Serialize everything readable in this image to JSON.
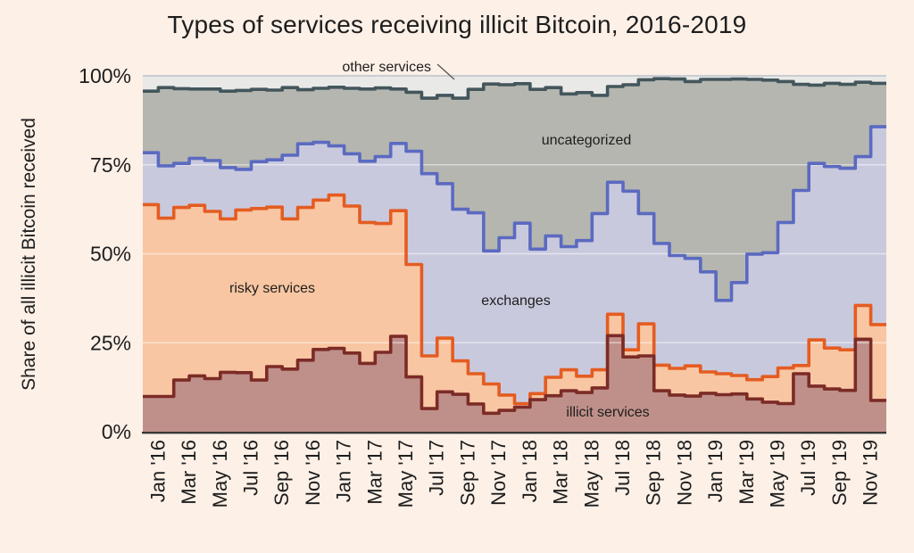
{
  "title": "Types of services receiving illicit Bitcoin, 2016-2019",
  "y_axis": {
    "label": "Share of all illicit Bitcoin received",
    "ticks": [
      "100%",
      "75%",
      "50%",
      "25%",
      "0%"
    ]
  },
  "x_axis": {
    "tick_labels": [
      "Jan '16",
      "Mar '16",
      "May '16",
      "Jul '16",
      "Sep '16",
      "Nov '16",
      "Jan '17",
      "Mar '17",
      "May '17",
      "Jul '17",
      "Sep '17",
      "Nov '17",
      "Jan '18",
      "Mar '18",
      "May '18",
      "Jul '18",
      "Sep '18",
      "Nov '18",
      "Jan '19",
      "Mar '19",
      "May '19",
      "Jul '19",
      "Sep '19",
      "Nov '19"
    ]
  },
  "annotations": {
    "other_services": "other services",
    "uncategorized": "uncategorized",
    "risky_services": "risky services",
    "exchanges": "exchanges",
    "illicit_services": "illicit services"
  },
  "colors": {
    "background": "#fcf0e7",
    "text": "#1d1d1d",
    "plot_top_line": "#bac3cc",
    "inner_gridline": "rgba(255,255,255,0.5)",
    "axis_line": "#383838",
    "callout_line": "#555555"
  },
  "chart_data": {
    "type": "area",
    "variant": "stacked-step-100percent",
    "title": "Types of services receiving illicit Bitcoin, 2016-2019",
    "ylabel": "Share of all illicit Bitcoin received",
    "ylim": [
      0,
      100
    ],
    "grid": "faint horizontal lines at 25/50/75/100",
    "legend_position": "inline-annotations",
    "n_months": 48,
    "x_tick_labels": [
      "Jan '16",
      "Mar '16",
      "May '16",
      "Jul '16",
      "Sep '16",
      "Nov '16",
      "Jan '17",
      "Mar '17",
      "May '17",
      "Jul '17",
      "Sep '17",
      "Nov '17",
      "Jan '18",
      "Mar '18",
      "May '18",
      "Jul '18",
      "Sep '18",
      "Nov '18",
      "Jan '19",
      "Mar '19",
      "May '19",
      "Jul '19",
      "Sep '19",
      "Nov '19"
    ],
    "note": "cumulative_top = cumulative stacked share (%) at top of each band, one value per month Jan 2016 - Dec 2019",
    "series": [
      {
        "name": "illicit services",
        "line_color": "#7c2b26",
        "fill_color": "#bf908a",
        "cumulative_top": [
          9.9,
          9.9,
          14.5,
          15.7,
          14.9,
          16.7,
          16.6,
          14.5,
          18.3,
          17.6,
          20.1,
          23.1,
          23.4,
          22.1,
          19.2,
          22.3,
          26.8,
          15.4,
          6.5,
          11.2,
          10.5,
          7.8,
          5.2,
          6.0,
          6.9,
          9.0,
          10.1,
          11.5,
          11.0,
          12.3,
          27.0,
          21.0,
          21.3,
          11.5,
          10.3,
          10.0,
          10.8,
          10.4,
          10.6,
          9.2,
          8.3,
          7.9,
          16.3,
          12.8,
          12.0,
          11.6,
          26.0,
          8.8
        ]
      },
      {
        "name": "risky services",
        "line_color": "#e45c21",
        "fill_color": "#f8c6a2",
        "cumulative_top": [
          63.8,
          60.0,
          63.0,
          63.6,
          61.9,
          59.8,
          62.3,
          62.7,
          63.1,
          59.8,
          63.0,
          65.1,
          66.5,
          63.4,
          58.8,
          58.5,
          62.1,
          47.0,
          21.3,
          26.3,
          19.9,
          16.3,
          13.4,
          10.3,
          7.9,
          10.7,
          15.3,
          17.4,
          15.6,
          17.4,
          33.0,
          23.0,
          30.3,
          18.7,
          17.8,
          18.5,
          16.8,
          16.3,
          15.8,
          14.6,
          15.5,
          17.9,
          18.6,
          25.8,
          23.5,
          23.0,
          35.5,
          30.1
        ]
      },
      {
        "name": "exchanges",
        "line_color": "#5b6ac0",
        "fill_color": "#c9c9de",
        "cumulative_top": [
          78.4,
          74.7,
          75.4,
          76.8,
          76.2,
          74.2,
          73.7,
          75.9,
          76.4,
          77.7,
          80.9,
          81.3,
          80.3,
          78.1,
          76.0,
          77.3,
          81.0,
          78.8,
          72.5,
          69.7,
          62.5,
          61.5,
          50.8,
          54.5,
          58.6,
          51.3,
          55.0,
          52.0,
          53.7,
          61.3,
          70.1,
          67.6,
          61.3,
          52.9,
          49.5,
          48.7,
          44.9,
          36.9,
          41.9,
          49.9,
          50.3,
          58.8,
          67.8,
          75.4,
          74.5,
          74.0,
          77.3,
          85.7
        ]
      },
      {
        "name": "uncategorized",
        "line_color": "#43565c",
        "fill_color": "#b5b6b0",
        "cumulative_top": [
          95.7,
          96.7,
          96.4,
          96.3,
          96.3,
          95.7,
          95.9,
          96.2,
          96.0,
          96.7,
          96.1,
          96.5,
          96.8,
          96.5,
          96.3,
          96.6,
          96.3,
          95.4,
          93.7,
          94.5,
          93.7,
          96.2,
          97.7,
          97.5,
          97.8,
          96.2,
          96.7,
          94.9,
          95.3,
          94.5,
          97.0,
          97.5,
          98.9,
          99.2,
          99.1,
          98.4,
          99.0,
          99.0,
          99.1,
          99.0,
          98.8,
          98.4,
          97.6,
          97.4,
          97.9,
          97.6,
          98.2,
          97.9
        ]
      },
      {
        "name": "other services",
        "line_color": null,
        "fill_color": "#e9e9e7",
        "cumulative_top": 100
      }
    ]
  }
}
